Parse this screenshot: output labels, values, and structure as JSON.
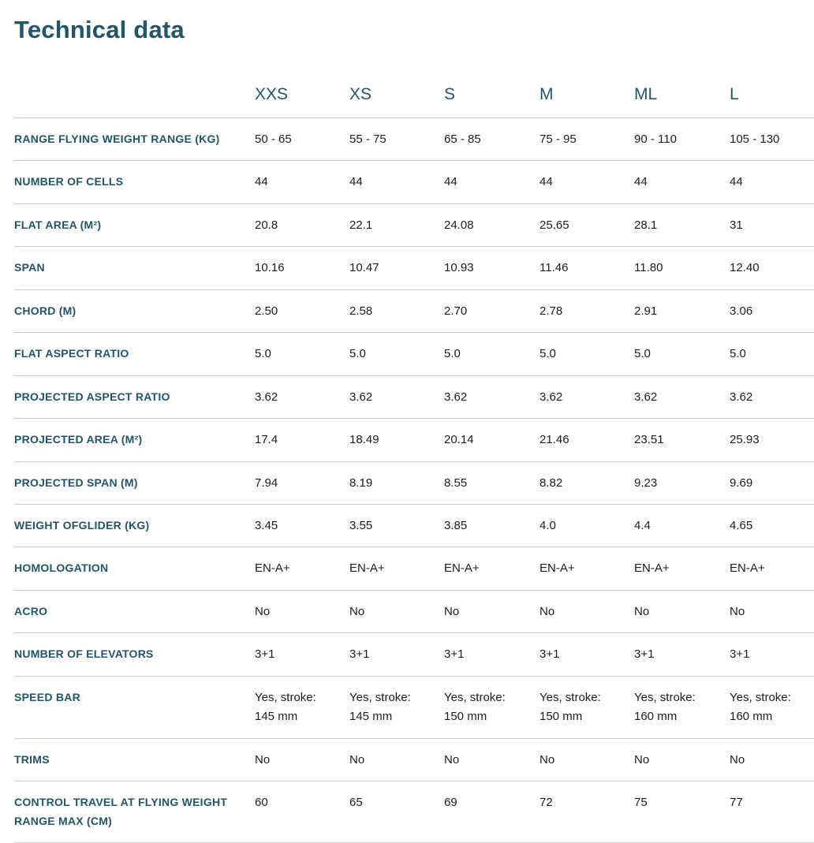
{
  "page": {
    "title": "Technical data"
  },
  "colors": {
    "accent": "#235569",
    "text": "#1d1d1b",
    "divider": "#cccccc",
    "background": "#ffffff"
  },
  "table": {
    "size_headers": [
      "XXS",
      "XS",
      "S",
      "M",
      "ML",
      "L"
    ],
    "rows": [
      {
        "label": "RANGE FLYING WEIGHT RANGE (KG)",
        "values": [
          "50 - 65",
          "55 - 75",
          "65 - 85",
          "75 - 95",
          "90 - 110",
          "105 - 130"
        ]
      },
      {
        "label": "NUMBER OF CELLS",
        "values": [
          "44",
          "44",
          "44",
          "44",
          "44",
          "44"
        ]
      },
      {
        "label": "FLAT AREA (M²)",
        "values": [
          "20.8",
          "22.1",
          "24.08",
          "25.65",
          "28.1",
          "31"
        ]
      },
      {
        "label": "SPAN",
        "values": [
          "10.16",
          "10.47",
          "10.93",
          "11.46",
          "11.80",
          "12.40"
        ]
      },
      {
        "label": "CHORD (M)",
        "values": [
          "2.50",
          "2.58",
          "2.70",
          "2.78",
          "2.91",
          "3.06"
        ]
      },
      {
        "label": "FLAT ASPECT RATIO",
        "values": [
          "5.0",
          "5.0",
          "5.0",
          "5.0",
          "5.0",
          "5.0"
        ]
      },
      {
        "label": "PROJECTED ASPECT RATIO",
        "values": [
          "3.62",
          "3.62",
          "3.62",
          "3.62",
          "3.62",
          "3.62"
        ]
      },
      {
        "label": "PROJECTED AREA (M²)",
        "values": [
          "17.4",
          "18.49",
          "20.14",
          "21.46",
          "23.51",
          "25.93"
        ]
      },
      {
        "label": "PROJECTED SPAN (M)",
        "values": [
          "7.94",
          "8.19",
          "8.55",
          "8.82",
          "9.23",
          "9.69"
        ]
      },
      {
        "label": "WEIGHT OFGLIDER (KG)",
        "values": [
          "3.45",
          "3.55",
          "3.85",
          "4.0",
          "4.4",
          "4.65"
        ]
      },
      {
        "label": "HOMOLOGATION",
        "values": [
          "EN-A+",
          "EN-A+",
          "EN-A+",
          "EN-A+",
          "EN-A+",
          "EN-A+"
        ]
      },
      {
        "label": "ACRO",
        "values": [
          "No",
          "No",
          "No",
          "No",
          "No",
          "No"
        ]
      },
      {
        "label": "NUMBER OF ELEVATORS",
        "values": [
          "3+1",
          "3+1",
          "3+1",
          "3+1",
          "3+1",
          "3+1"
        ]
      },
      {
        "label": "SPEED BAR",
        "values": [
          "Yes, stroke:\n145 mm",
          "Yes, stroke:\n145 mm",
          "Yes, stroke:\n150 mm",
          "Yes, stroke:\n150 mm",
          "Yes, stroke:\n160 mm",
          "Yes, stroke:\n160 mm"
        ]
      },
      {
        "label": "TRIMS",
        "values": [
          "No",
          "No",
          "No",
          "No",
          "No",
          "No"
        ]
      },
      {
        "label": "CONTROL TRAVEL AT FLYING WEIGHT RANGE MAX (CM)",
        "values": [
          "60",
          "65",
          "69",
          "72",
          "75",
          "77"
        ]
      }
    ]
  }
}
